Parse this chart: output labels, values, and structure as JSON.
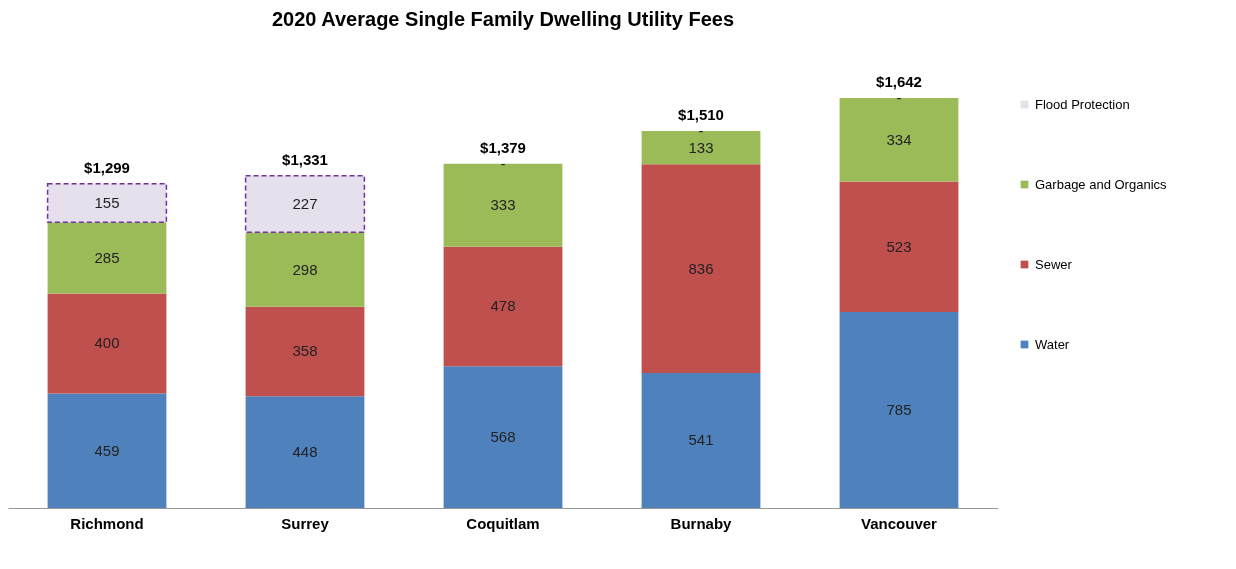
{
  "chart_data": {
    "type": "bar",
    "title": "2020 Average Single Family Dwelling Utility Fees",
    "categories": [
      "Richmond",
      "Surrey",
      "Coquitlam",
      "Burnaby",
      "Vancouver"
    ],
    "stacked": true,
    "data_labels": true,
    "legend": "right",
    "grid": false,
    "series": [
      {
        "name": "Water",
        "color": "#4f81bd",
        "values": [
          459,
          448,
          568,
          541,
          785
        ]
      },
      {
        "name": "Sewer",
        "color": "#c0504d",
        "values": [
          400,
          358,
          478,
          836,
          523
        ]
      },
      {
        "name": "Garbage and Organics",
        "color": "#9bbb59",
        "values": [
          285,
          298,
          333,
          133,
          334
        ]
      },
      {
        "name": "Flood Protection",
        "color": "#e6e0ec",
        "values": [
          155,
          227,
          0,
          0,
          0
        ],
        "value_labels": [
          "155",
          "227",
          "-",
          "-",
          "-"
        ],
        "line_style": "dashed"
      }
    ],
    "totals": [
      "$1,299",
      "$1,331",
      "$1,379",
      "$1,510",
      "$1,642"
    ]
  }
}
